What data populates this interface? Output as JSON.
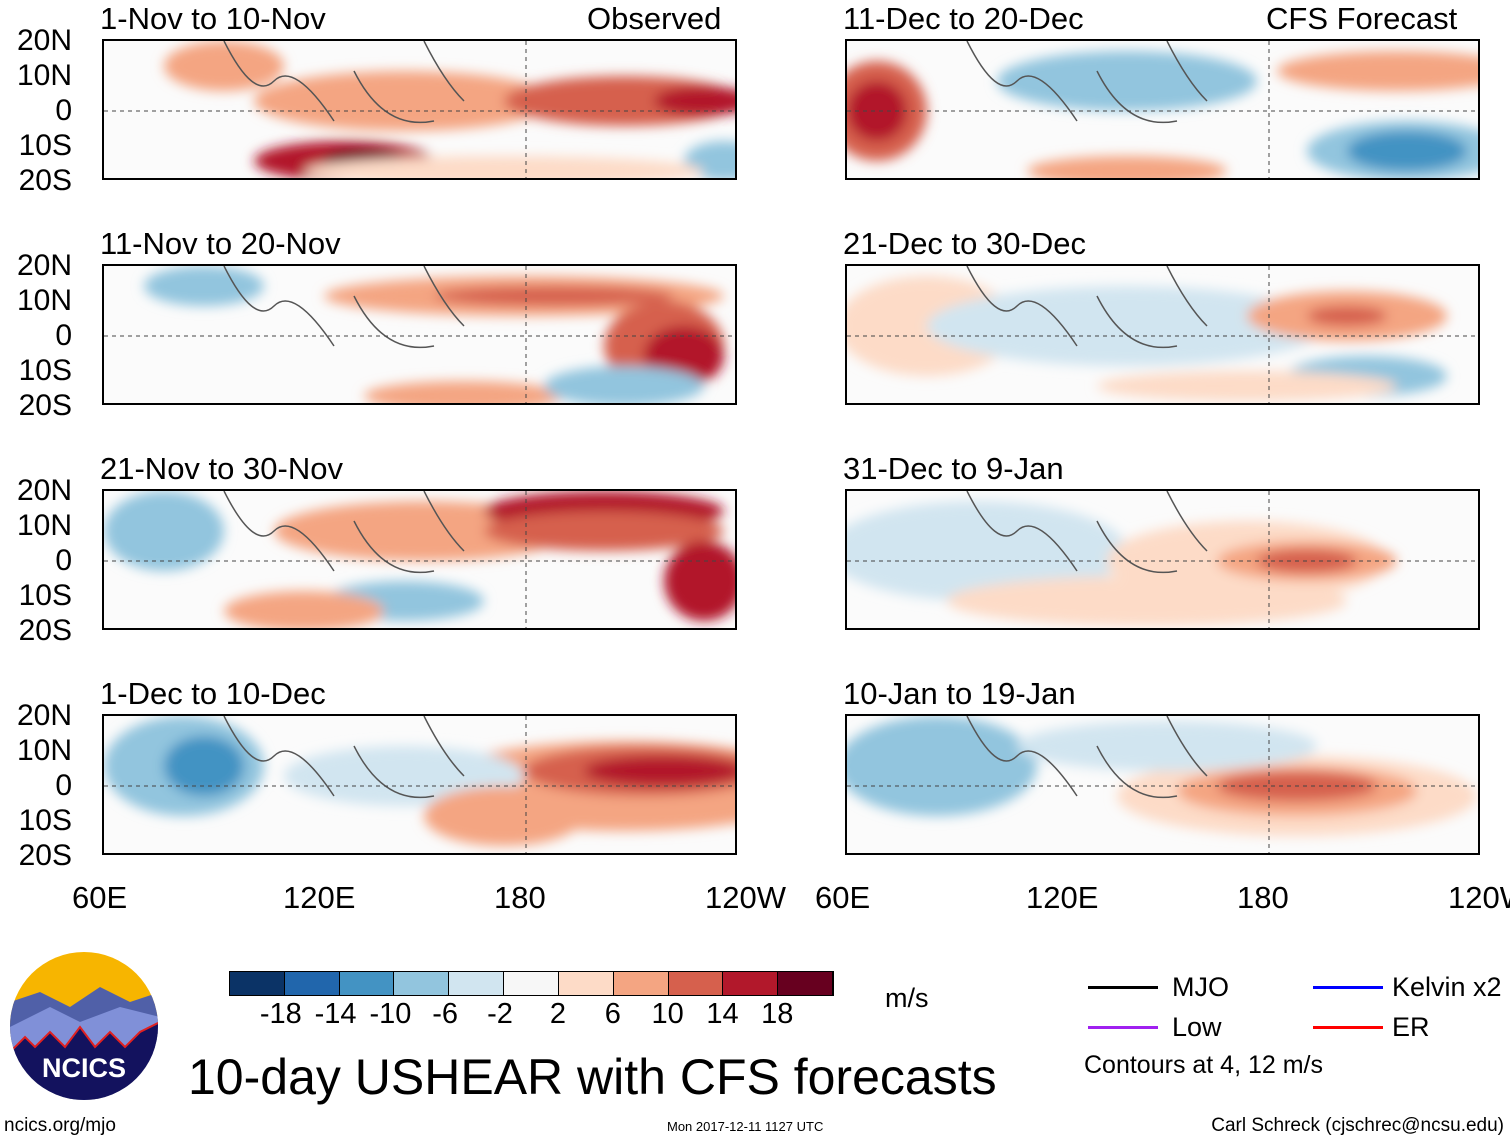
{
  "title": "10-day USHEAR with CFS forecasts",
  "column_headers": {
    "observed": "Observed",
    "forecast": "CFS Forecast"
  },
  "panels": [
    {
      "title": "1-Nov to 10-Nov",
      "type": "observed"
    },
    {
      "title": "11-Nov to 20-Nov",
      "type": "observed"
    },
    {
      "title": "21-Nov to 30-Nov",
      "type": "observed"
    },
    {
      "title": "1-Dec to 10-Dec",
      "type": "observed"
    },
    {
      "title": "11-Dec to 20-Dec",
      "type": "forecast"
    },
    {
      "title": "21-Dec to 30-Dec",
      "type": "forecast"
    },
    {
      "title": "31-Dec to 9-Jan",
      "type": "forecast"
    },
    {
      "title": "10-Jan to 19-Jan",
      "type": "forecast"
    }
  ],
  "lat_labels": [
    "20N",
    "10N",
    "0",
    "10S",
    "20S"
  ],
  "lon_labels": [
    "60E",
    "120E",
    "180",
    "120W"
  ],
  "colorbar": {
    "unit": "m/s",
    "labels": [
      "-18",
      "-14",
      "-10",
      "-6",
      "-2",
      "2",
      "6",
      "10",
      "14",
      "18"
    ],
    "colors": [
      "#0b3366",
      "#2166ac",
      "#4393c3",
      "#92c5de",
      "#d1e5f0",
      "#f7f7f7",
      "#fddbc7",
      "#f4a582",
      "#d6604d",
      "#b2182b",
      "#67001f"
    ]
  },
  "legend": {
    "items": [
      {
        "label": "MJO",
        "color": "#000000"
      },
      {
        "label": "Kelvin x2",
        "color": "#0000ff"
      },
      {
        "label": "Low",
        "color": "#a020f0"
      },
      {
        "label": "ER",
        "color": "#ff0000"
      }
    ],
    "note": "Contours at 4, 12 m/s"
  },
  "logo": {
    "text": "NCICS"
  },
  "footer": {
    "url": "ncics.org/mjo",
    "timestamp": "Mon 2017-12-11 1127 UTC",
    "author": "Carl Schreck (cjschrec@ncsu.edu)"
  }
}
